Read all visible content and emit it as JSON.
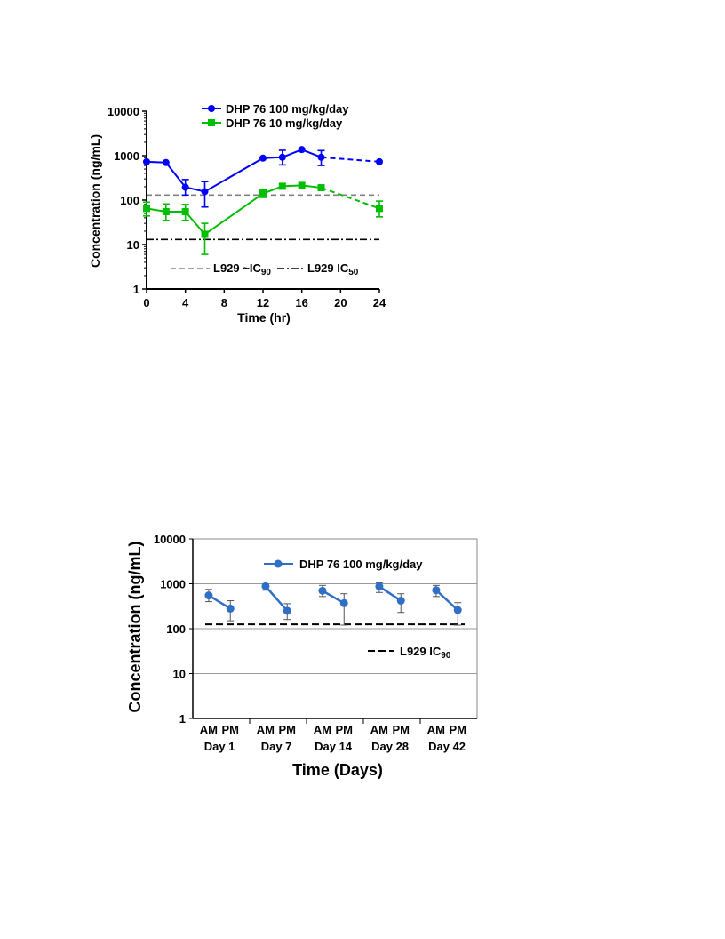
{
  "chart_data": [
    {
      "type": "line",
      "xlabel": "Time (hr)",
      "ylabel": "Concentration (ng/mL)",
      "y_scale": "log",
      "ylim": [
        1,
        10000
      ],
      "xlim": [
        0,
        24
      ],
      "x_ticks": [
        0,
        4,
        8,
        12,
        16,
        20,
        24
      ],
      "y_ticks": [
        1,
        10,
        100,
        1000,
        10000
      ],
      "grid": false,
      "legend_position": "top",
      "series": [
        {
          "name": "DHP 76  100 mg/kg/day",
          "color": "#0000ff",
          "marker": "circle",
          "x": [
            0,
            2,
            4,
            6,
            12,
            14,
            16,
            18,
            24
          ],
          "y": [
            730,
            700,
            195,
            155,
            880,
            920,
            1370,
            920,
            730
          ],
          "err": [
            null,
            null,
            [
              130,
              290
            ],
            [
              70,
              260
            ],
            null,
            [
              620,
              1320
            ],
            null,
            [
              600,
              1300
            ],
            null
          ],
          "dashed_from_x": 18
        },
        {
          "name": "DHP 76  10 mg/kg/day",
          "color": "#00bf00",
          "marker": "square",
          "x": [
            0,
            2,
            4,
            6,
            12,
            14,
            16,
            18,
            24
          ],
          "y": [
            65,
            55,
            55,
            17,
            140,
            205,
            215,
            190,
            65
          ],
          "err": [
            [
              44,
              90
            ],
            [
              35,
              82
            ],
            [
              35,
              80
            ],
            [
              6,
              30
            ],
            [
              115,
              170
            ],
            null,
            null,
            null,
            [
              42,
              95
            ]
          ],
          "dashed_from_x": 18
        }
      ],
      "reference_lines": [
        {
          "label": "L929 ~IC",
          "sub": "90",
          "y": 130,
          "style": "dashed",
          "color": "#808080"
        },
        {
          "label": "L929 IC",
          "sub": "50",
          "y": 13,
          "style": "dashdot",
          "color": "#000000"
        }
      ]
    },
    {
      "type": "line",
      "xlabel": "Time (Days)",
      "ylabel": "Concentration (ng/mL)",
      "y_scale": "log",
      "ylim": [
        1,
        10000
      ],
      "y_ticks": [
        1,
        10,
        100,
        1000,
        10000
      ],
      "grid": true,
      "legend_position": "top-center",
      "groups": [
        "Day 1",
        "Day 7",
        "Day 14",
        "Day 28",
        "Day 42"
      ],
      "sub_categories": [
        "AM",
        "PM"
      ],
      "series": [
        {
          "name": "DHP 76  100 mg/kg/day",
          "color": "#2f6fc8",
          "marker": "circle",
          "values": [
            {
              "am": 550,
              "pm": 280,
              "am_err": [
                400,
                750
              ],
              "pm_err": [
                150,
                420
              ]
            },
            {
              "am": 880,
              "pm": 250,
              "am_err": [
                720,
                980
              ],
              "pm_err": [
                160,
                360
              ]
            },
            {
              "am": 700,
              "pm": 370,
              "am_err": [
                520,
                920
              ],
              "pm_err": [
                120,
                600
              ]
            },
            {
              "am": 870,
              "pm": 420,
              "am_err": [
                640,
                1050
              ],
              "pm_err": [
                230,
                600
              ]
            },
            {
              "am": 720,
              "pm": 260,
              "am_err": [
                520,
                920
              ],
              "pm_err": [
                120,
                380
              ]
            }
          ]
        }
      ],
      "reference_lines": [
        {
          "label": "L929 IC",
          "sub": "90",
          "y": 125,
          "style": "dashed",
          "color": "#000000"
        }
      ]
    }
  ]
}
